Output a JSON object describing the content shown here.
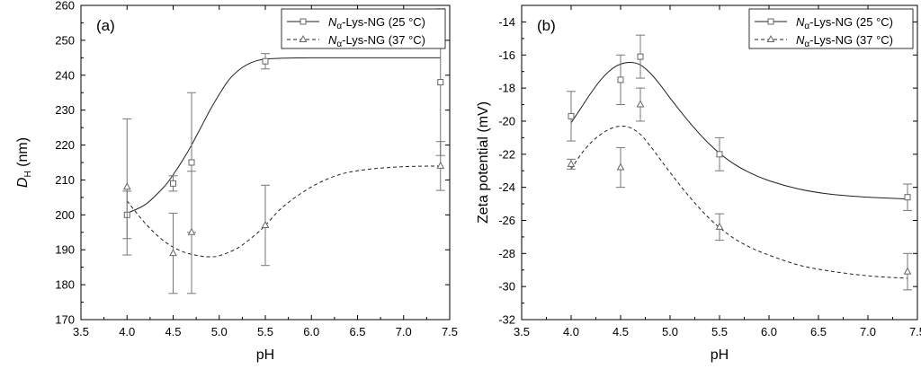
{
  "chart_data": [
    {
      "type": "scatter",
      "panel_label": "(a)",
      "xlabel": "pH",
      "ylabel": {
        "main": "D",
        "subscript": "H",
        "unit": " (nm)"
      },
      "xlim": [
        3.5,
        7.5
      ],
      "ylim": [
        170,
        260
      ],
      "x_ticks": [
        "3.5",
        "4.0",
        "4.5",
        "5.0",
        "5.5",
        "6.0",
        "6.5",
        "7.0",
        "7.5"
      ],
      "y_ticks": [
        "170",
        "180",
        "190",
        "200",
        "210",
        "220",
        "230",
        "240",
        "250",
        "260"
      ],
      "legend_position": "top-right",
      "series": [
        {
          "name": "Nα-Lys-NG (25 °C)",
          "legend": {
            "italic": "N",
            "subscript": "α",
            "rest": "-Lys-NG (25 °C)"
          },
          "marker": "square",
          "line": "solid",
          "x": [
            4.0,
            4.5,
            4.7,
            5.5,
            7.4
          ],
          "y": [
            200,
            209,
            215,
            244,
            238
          ],
          "err": [
            6.8,
            2.2,
            20,
            2.2,
            21
          ],
          "fit_x": [
            4.0,
            4.2,
            4.4,
            4.5,
            4.6,
            4.7,
            4.8,
            4.9,
            5.0,
            5.1,
            5.2,
            5.3,
            5.4,
            5.5,
            5.7,
            6.0,
            6.5,
            7.0,
            7.4
          ],
          "fit_y": [
            200.5,
            203,
            208,
            211.5,
            215.5,
            220,
            225,
            230,
            234.5,
            238.5,
            241.2,
            243,
            244.1,
            244.6,
            244.9,
            245,
            245,
            245,
            245
          ]
        },
        {
          "name": "Nα-Lys-NG (37 °C)",
          "legend": {
            "italic": "N",
            "subscript": "α",
            "rest": "-Lys-NG (37 °C)"
          },
          "marker": "triangle",
          "line": "dashed",
          "x": [
            4.0,
            4.5,
            4.7,
            5.5,
            7.4
          ],
          "y": [
            208,
            189,
            195,
            197,
            214
          ],
          "err": [
            19.5,
            11.5,
            17.5,
            11.5,
            7
          ],
          "fit_x": [
            4.0,
            4.2,
            4.4,
            4.6,
            4.8,
            4.9,
            5.0,
            5.2,
            5.4,
            5.5,
            5.7,
            6.0,
            6.3,
            6.6,
            7.0,
            7.4
          ],
          "fit_y": [
            204,
            197.5,
            192.5,
            189.5,
            188.2,
            188,
            188.3,
            190.5,
            194.5,
            197,
            202.5,
            208,
            211.5,
            213,
            213.8,
            214
          ]
        }
      ]
    },
    {
      "type": "scatter",
      "panel_label": "(b)",
      "xlabel": "pH",
      "ylabel": {
        "main": "Zeta potential (mV)"
      },
      "xlim": [
        3.5,
        7.5
      ],
      "ylim": [
        -32,
        -13
      ],
      "x_ticks": [
        "3.5",
        "4.0",
        "4.5",
        "5.0",
        "5.5",
        "6.0",
        "6.5",
        "7.0",
        "7.5"
      ],
      "y_ticks": [
        "-32",
        "-30",
        "-28",
        "-26",
        "-24",
        "-22",
        "-20",
        "-18",
        "-16",
        "-14"
      ],
      "legend_position": "top-right",
      "series": [
        {
          "name": "Nα-Lys-NG (25 °C)",
          "legend": {
            "italic": "N",
            "subscript": "α",
            "rest": "-Lys-NG (25 °C)"
          },
          "marker": "square",
          "line": "solid",
          "x": [
            4.0,
            4.5,
            4.7,
            5.5,
            7.4
          ],
          "y": [
            -19.7,
            -17.5,
            -16.1,
            -22.0,
            -24.6
          ],
          "err": [
            1.5,
            1.5,
            1.3,
            1.0,
            0.8
          ],
          "fit_x": [
            4.0,
            4.1,
            4.2,
            4.3,
            4.4,
            4.5,
            4.6,
            4.7,
            4.8,
            4.9,
            5.0,
            5.2,
            5.4,
            5.6,
            5.8,
            6.0,
            6.3,
            6.6,
            7.0,
            7.4
          ],
          "fit_y": [
            -20.1,
            -19.2,
            -18.3,
            -17.5,
            -16.9,
            -16.55,
            -16.45,
            -16.6,
            -17.1,
            -17.8,
            -18.6,
            -20.1,
            -21.4,
            -22.4,
            -23.1,
            -23.6,
            -24.1,
            -24.4,
            -24.6,
            -24.7
          ]
        },
        {
          "name": "Nα-Lys-NG (37 °C)",
          "legend": {
            "italic": "N",
            "subscript": "α",
            "rest": "-Lys-NG (37 °C)"
          },
          "marker": "triangle",
          "line": "dashed",
          "x": [
            4.0,
            4.5,
            4.7,
            5.5,
            7.4
          ],
          "y": [
            -22.6,
            -22.8,
            -19.0,
            -26.4,
            -29.1
          ],
          "err": [
            0.3,
            1.2,
            1.0,
            0.8,
            1.1
          ],
          "fit_x": [
            4.0,
            4.1,
            4.2,
            4.3,
            4.4,
            4.5,
            4.6,
            4.7,
            4.8,
            4.9,
            5.0,
            5.2,
            5.4,
            5.6,
            5.8,
            6.0,
            6.3,
            6.6,
            7.0,
            7.4
          ],
          "fit_y": [
            -22.9,
            -22.0,
            -21.3,
            -20.8,
            -20.45,
            -20.3,
            -20.4,
            -20.8,
            -21.5,
            -22.3,
            -23.1,
            -24.6,
            -25.9,
            -26.9,
            -27.6,
            -28.1,
            -28.7,
            -29.05,
            -29.35,
            -29.5
          ]
        }
      ]
    }
  ]
}
